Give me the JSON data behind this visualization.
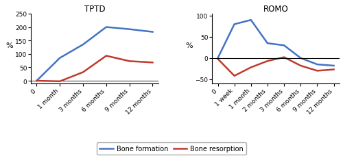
{
  "tptd_title": "TPTD",
  "romo_title": "ROMO",
  "tptd_x_labels": [
    "0",
    "1 month",
    "3 months",
    "6 months",
    "9 months",
    "12 months"
  ],
  "tptd_x": [
    0,
    1,
    2,
    3,
    4,
    5
  ],
  "tptd_formation": [
    0,
    85,
    135,
    200,
    192,
    182
  ],
  "tptd_resorption": [
    0,
    -2,
    32,
    93,
    73,
    68
  ],
  "tptd_ylim": [
    -10,
    250
  ],
  "tptd_yticks": [
    0,
    50,
    100,
    150,
    200,
    250
  ],
  "romo_x_labels": [
    "0",
    "1 week",
    "1 month",
    "2 months",
    "3 months",
    "6 months",
    "9 months",
    "12 months"
  ],
  "romo_x": [
    0,
    1,
    2,
    3,
    4,
    5,
    6,
    7
  ],
  "romo_formation": [
    0,
    80,
    90,
    35,
    30,
    0,
    -15,
    -18
  ],
  "romo_resorption": [
    -2,
    -42,
    -22,
    -7,
    2,
    -18,
    -30,
    -27
  ],
  "romo_ylim": [
    -60,
    105
  ],
  "romo_yticks": [
    -50,
    0,
    50,
    100
  ],
  "formation_color": "#4472C4",
  "resorption_color": "#C0392B",
  "ylabel": "%",
  "legend_formation": "Bone formation",
  "legend_resorption": "Bone resorption",
  "background_color": "#FFFFFF",
  "line_width": 1.8
}
